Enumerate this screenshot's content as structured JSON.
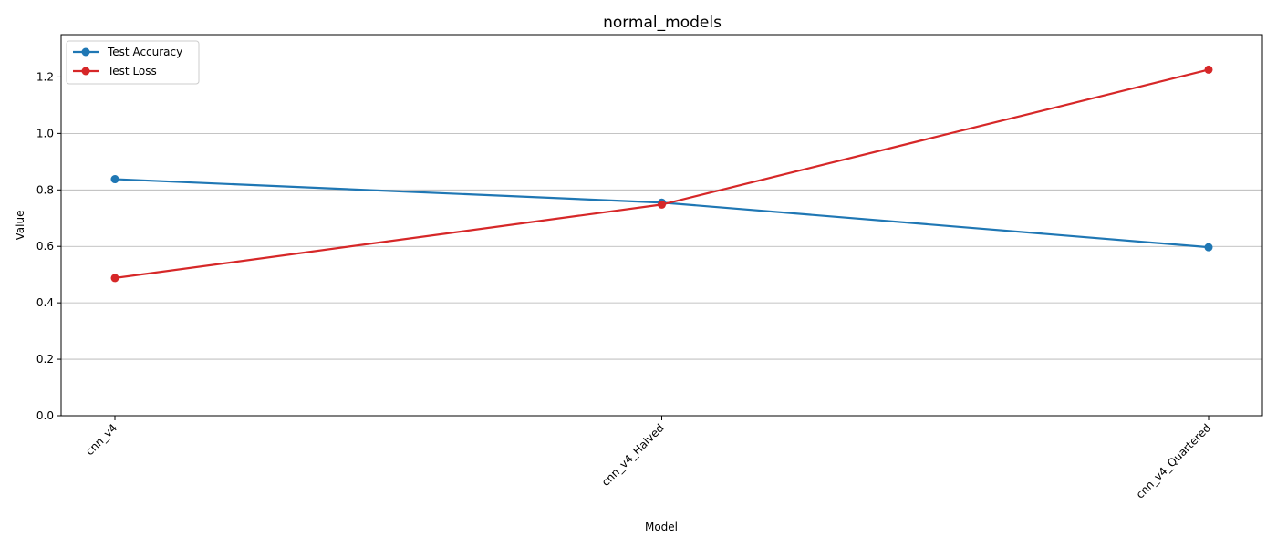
{
  "chart_data": {
    "type": "line",
    "title": "normal_models",
    "xlabel": "Model",
    "ylabel": "Value",
    "categories": [
      "cnn_v4",
      "cnn_v4_Halved",
      "cnn_v4_Quartered"
    ],
    "ylim": [
      0,
      1.35
    ],
    "yticks": [
      "0.0",
      "0.2",
      "0.4",
      "0.6",
      "0.8",
      "1.0",
      "1.2"
    ],
    "grid": "y",
    "legend_position": "top-left",
    "series": [
      {
        "name": "Test Accuracy",
        "color": "#1f77b4",
        "values": [
          0.838,
          0.755,
          0.597
        ]
      },
      {
        "name": "Test Loss",
        "color": "#d62728",
        "values": [
          0.488,
          0.748,
          1.226
        ]
      }
    ]
  }
}
